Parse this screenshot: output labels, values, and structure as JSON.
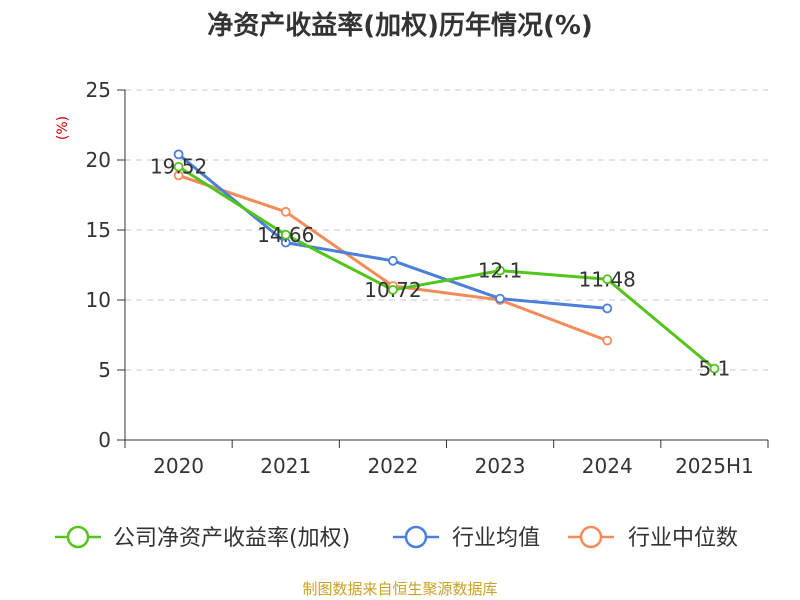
{
  "chart_data": {
    "type": "line",
    "title": "净资产收益率(加权)历年情况(%)",
    "ylabel": "(%)",
    "categories": [
      "2020",
      "2021",
      "2022",
      "2023",
      "2024",
      "2025H1"
    ],
    "ylim": [
      0,
      25
    ],
    "yticks": [
      0,
      5,
      10,
      15,
      20,
      25
    ],
    "grid": true,
    "legend_position": "bottom",
    "series": [
      {
        "name": "公司净资产收益率(加权)",
        "color": "#52c41a",
        "values": [
          19.52,
          14.66,
          10.72,
          12.1,
          11.48,
          5.1
        ],
        "labels": [
          "19.52",
          "14.66",
          "10.72",
          "12.1",
          "11.48",
          "5.1"
        ]
      },
      {
        "name": "行业均值",
        "color": "#4a7fdb",
        "values": [
          20.4,
          14.1,
          12.8,
          10.1,
          9.4,
          null
        ]
      },
      {
        "name": "行业中位数",
        "color": "#f28c5a",
        "values": [
          18.9,
          16.3,
          11.0,
          10.0,
          7.1,
          null
        ]
      }
    ]
  },
  "source": "制图数据来自恒生聚源数据库"
}
